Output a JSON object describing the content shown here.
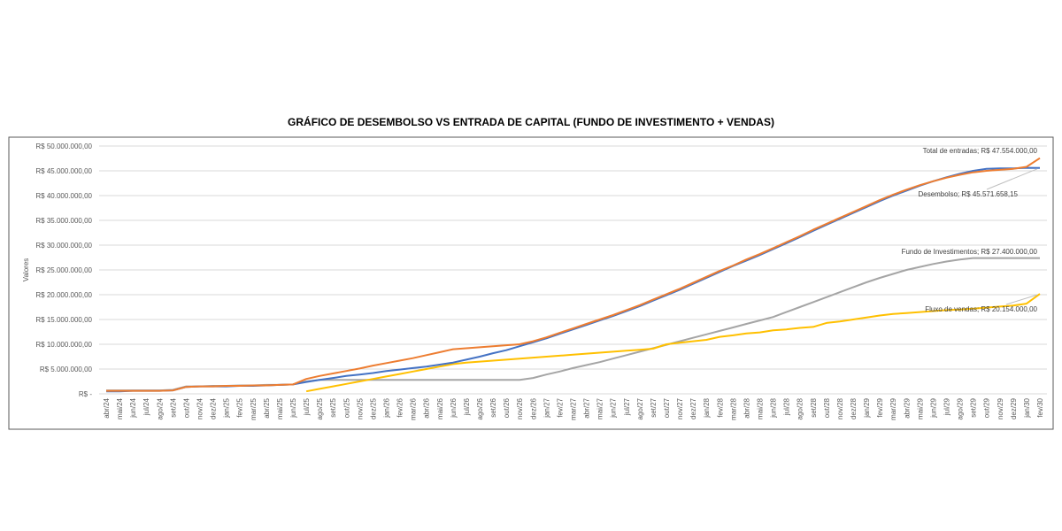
{
  "chart_data": {
    "type": "line",
    "title": "GRÁFICO DE DESEMBOLSO VS ENTRADA DE CAPITAL (FUNDO DE INVESTIMENTO + VENDAS)",
    "xlabel": "",
    "ylabel": "Valores",
    "ylim": [
      0,
      50000000
    ],
    "yticks": [
      0,
      5000000,
      10000000,
      15000000,
      20000000,
      25000000,
      30000000,
      35000000,
      40000000,
      45000000,
      50000000
    ],
    "ytick_labels": [
      "R$ -",
      "R$ 5.000.000,00",
      "R$ 10.000.000,00",
      "R$ 15.000.000,00",
      "R$ 20.000.000,00",
      "R$ 25.000.000,00",
      "R$ 30.000.000,00",
      "R$ 35.000.000,00",
      "R$ 40.000.000,00",
      "R$ 45.000.000,00",
      "R$ 50.000.000,00"
    ],
    "grid": true,
    "legend": "none",
    "unit_millions_note": "",
    "categories": [
      "abr/24",
      "mai/24",
      "jun/24",
      "jul/24",
      "ago/24",
      "set/24",
      "out/24",
      "nov/24",
      "dez/24",
      "jan/25",
      "fev/25",
      "mar/25",
      "abr/25",
      "mai/25",
      "jun/25",
      "jul/25",
      "ago/25",
      "set/25",
      "out/25",
      "nov/25",
      "dez/25",
      "jan/26",
      "fev/26",
      "mar/26",
      "abr/26",
      "mai/26",
      "jun/26",
      "jul/26",
      "ago/26",
      "set/26",
      "out/26",
      "nov/26",
      "dez/26",
      "jan/27",
      "fev/27",
      "mar/27",
      "abr/27",
      "mai/27",
      "jun/27",
      "jul/27",
      "ago/27",
      "set/27",
      "out/27",
      "nov/27",
      "dez/27",
      "jan/28",
      "fev/28",
      "mar/28",
      "abr/28",
      "mai/28",
      "jun/28",
      "jul/28",
      "ago/28",
      "set/28",
      "out/28",
      "nov/28",
      "dez/28",
      "jan/29",
      "fev/29",
      "mar/29",
      "abr/29",
      "mai/29",
      "jun/29",
      "jul/29",
      "ago/29",
      "set/29",
      "out/29",
      "nov/29",
      "dez/29",
      "jan/30",
      "fev/30"
    ],
    "series": [
      {
        "name": "Desembolso",
        "color": "#4472C4",
        "end_label": "Desembolso;  R$ 45.571.658,15",
        "values": [
          500000,
          500000,
          600000,
          600000,
          600000,
          700000,
          1400000,
          1500000,
          1500000,
          1500000,
          1600000,
          1600000,
          1700000,
          1800000,
          1900000,
          2400000,
          2800000,
          3200000,
          3600000,
          3900000,
          4200000,
          4600000,
          4900000,
          5200000,
          5500000,
          5900000,
          6300000,
          6900000,
          7500000,
          8200000,
          8800000,
          9600000,
          10400000,
          11200000,
          12100000,
          13000000,
          13900000,
          14800000,
          15700000,
          16700000,
          17700000,
          18800000,
          19900000,
          21000000,
          22200000,
          23400000,
          24600000,
          25800000,
          26900000,
          28000000,
          29200000,
          30400000,
          31600000,
          32900000,
          34100000,
          35300000,
          36500000,
          37700000,
          38900000,
          40000000,
          41000000,
          42000000,
          42900000,
          43700000,
          44400000,
          45000000,
          45400000,
          45500000,
          45500000,
          45600000,
          45571658.15
        ]
      },
      {
        "name": "Total de entradas",
        "color": "#ED7D31",
        "end_label": "Total de entradas;  R$ 47.554.000,00",
        "values": [
          600000,
          600000,
          600000,
          600000,
          600000,
          700000,
          1400000,
          1500000,
          1500000,
          1600000,
          1600000,
          1700000,
          1700000,
          1800000,
          1900000,
          3000000,
          3600000,
          4100000,
          4600000,
          5100000,
          5700000,
          6200000,
          6700000,
          7200000,
          7800000,
          8400000,
          9000000,
          9200000,
          9400000,
          9600000,
          9800000,
          10000000,
          10600000,
          11400000,
          12300000,
          13200000,
          14100000,
          15000000,
          15900000,
          16900000,
          17900000,
          19000000,
          20100000,
          21200000,
          22400000,
          23600000,
          24800000,
          25900000,
          27100000,
          28200000,
          29400000,
          30600000,
          31800000,
          33100000,
          34300000,
          35500000,
          36700000,
          37900000,
          39100000,
          40200000,
          41200000,
          42100000,
          42900000,
          43600000,
          44200000,
          44700000,
          45000000,
          45200000,
          45400000,
          45800000,
          47554000
        ]
      },
      {
        "name": "Fundo de Investimentos",
        "color": "#A5A5A5",
        "end_label": "Fundo de Investimentos;  R$ 27.400.000,00",
        "values": [
          700000,
          700000,
          700000,
          700000,
          700000,
          800000,
          1500000,
          1500000,
          1600000,
          1600000,
          1700000,
          1700000,
          1800000,
          1800000,
          1900000,
          2500000,
          2800000,
          2800000,
          2800000,
          2800000,
          2800000,
          2800000,
          2800000,
          2800000,
          2800000,
          2800000,
          2800000,
          2800000,
          2800000,
          2800000,
          2800000,
          2800000,
          3200000,
          3900000,
          4500000,
          5200000,
          5800000,
          6400000,
          7100000,
          7800000,
          8500000,
          9200000,
          9900000,
          10600000,
          11300000,
          12000000,
          12700000,
          13400000,
          14100000,
          14800000,
          15500000,
          16500000,
          17500000,
          18500000,
          19500000,
          20500000,
          21500000,
          22500000,
          23400000,
          24200000,
          25000000,
          25600000,
          26200000,
          26700000,
          27100000,
          27400000,
          27400000,
          27400000,
          27400000,
          27400000,
          27400000
        ]
      },
      {
        "name": "Fluxo de vendas",
        "color": "#FFC000",
        "end_label": "Fluxo de vendas;  R$ 20.154.000,00",
        "values": [
          null,
          null,
          null,
          null,
          null,
          null,
          null,
          null,
          null,
          null,
          null,
          null,
          null,
          null,
          null,
          500000,
          1000000,
          1500000,
          2000000,
          2500000,
          3000000,
          3500000,
          4000000,
          4500000,
          5000000,
          5500000,
          6000000,
          6300000,
          6500000,
          6700000,
          6900000,
          7100000,
          7300000,
          7500000,
          7700000,
          7900000,
          8100000,
          8300000,
          8500000,
          8700000,
          8900000,
          9100000,
          10000000,
          10300000,
          10600000,
          10900000,
          11500000,
          11800000,
          12200000,
          12400000,
          12800000,
          13000000,
          13300000,
          13500000,
          14300000,
          14600000,
          15000000,
          15400000,
          15800000,
          16100000,
          16300000,
          16500000,
          16700000,
          16900000,
          17000000,
          17200000,
          17400000,
          17600000,
          17800000,
          18200000,
          20154000
        ]
      }
    ]
  }
}
